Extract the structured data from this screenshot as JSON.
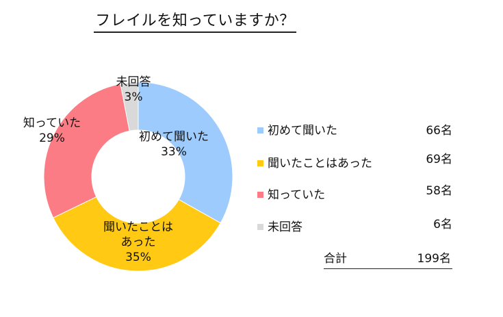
{
  "chart_data": {
    "type": "pie",
    "style": "donut",
    "title": "フレイルを知っていますか？",
    "categories": [
      "初めて聞いた",
      "聞いたことはあった",
      "知っていた",
      "未回答"
    ],
    "values": [
      66,
      69,
      58,
      6
    ],
    "percent_labels": [
      "33%",
      "35%",
      "29%",
      "3%"
    ],
    "slice_labels": [
      [
        "初めて聞いた",
        "33%"
      ],
      [
        "聞いたことは",
        "あった",
        "35%"
      ],
      [
        "知っていた",
        "29%"
      ],
      [
        "未回答",
        "3%"
      ]
    ],
    "colors": [
      "#9DCBFD",
      "#FFC914",
      "#FB7C84",
      "#D9D9D9"
    ],
    "legend_position": "right",
    "legend_counts": [
      "66名",
      "69名",
      "58名",
      "6名"
    ],
    "total_label": "合計",
    "total_value": "199名"
  }
}
